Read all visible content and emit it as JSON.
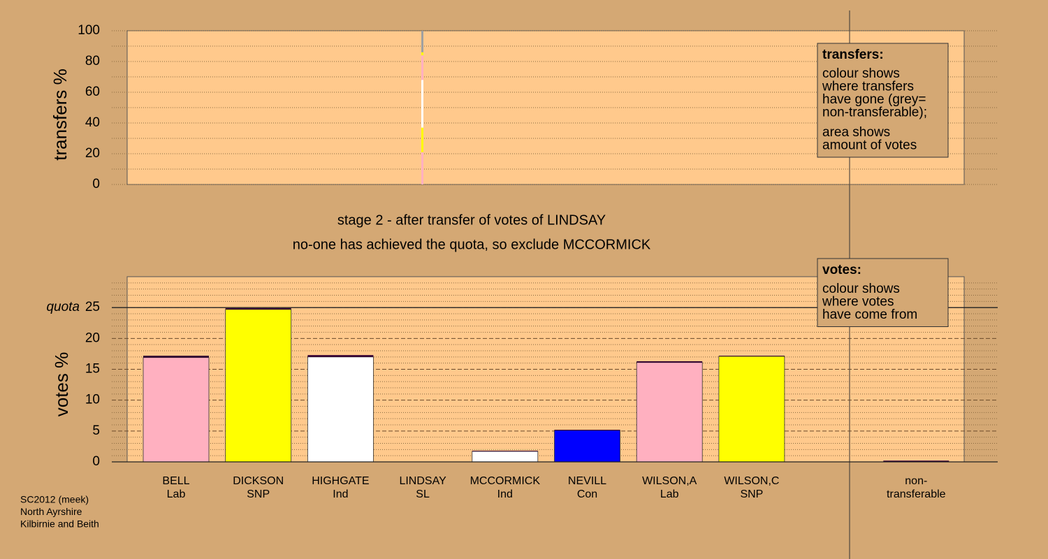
{
  "chart_data": [
    {
      "type": "transfer_strip",
      "ylabel": "transfers %",
      "ylim": [
        0,
        100
      ],
      "yticks": [
        0,
        20,
        40,
        60,
        80,
        100
      ],
      "minor_yticks": [
        10,
        30,
        50,
        70,
        90
      ],
      "segments": [
        {
          "color": "#ffb0c0",
          "value": 21
        },
        {
          "color": "#ffff00",
          "value": 16
        },
        {
          "color": "#ffffff",
          "value": 31
        },
        {
          "color": "#ffb0c0",
          "value": 16
        },
        {
          "color": "#ffff00",
          "value": 2
        },
        {
          "color": "#a0a0a0",
          "value": 14
        }
      ],
      "legend": {
        "title": "transfers:",
        "lines": [
          "colour shows",
          "where transfers",
          "have gone (grey=",
          "non-transferable);",
          "area shows",
          "amount of votes"
        ]
      }
    },
    {
      "type": "stacked_bar",
      "title": "stage 2 - after transfer of votes of LINDSAY",
      "subtitle": "no-one has achieved the quota, so exclude MCCORMICK",
      "ylabel": "votes %",
      "ylim": [
        0,
        30
      ],
      "yticks": [
        0,
        5,
        10,
        15,
        20,
        25
      ],
      "minor_yticks": [
        1,
        2,
        3,
        4,
        6,
        7,
        8,
        9,
        11,
        12,
        13,
        14,
        16,
        17,
        18,
        19,
        21,
        22,
        23,
        24,
        26,
        27,
        28,
        29
      ],
      "quota": {
        "label": "quota",
        "value": 25
      },
      "categories": [
        [
          "BELL",
          "Lab"
        ],
        [
          "DICKSON",
          "SNP"
        ],
        [
          "HIGHGATE",
          "Ind"
        ],
        [
          "LINDSAY",
          "SL"
        ],
        [
          "MCCORMICK",
          "Ind"
        ],
        [
          "NEVILL",
          "Con"
        ],
        [
          "WILSON,A",
          "Lab"
        ],
        [
          "WILSON,C",
          "SNP"
        ],
        [
          "non-",
          "transferable"
        ]
      ],
      "colors": [
        "#ffb0c0",
        "#ffff00",
        "#ffffff",
        "#330033",
        "#ffffff",
        "#0000ff",
        "#ffb0c0",
        "#ffff00",
        "#330033"
      ],
      "values": [
        16.9,
        24.7,
        17.0,
        0,
        1.7,
        5.1,
        16.1,
        17.1,
        0
      ],
      "transfer_color": "#330033",
      "transfers": [
        0.3,
        0.2,
        0.3,
        0,
        0.1,
        0.1,
        0.2,
        0.1,
        0.2
      ],
      "legend": {
        "title": "votes:",
        "lines": [
          "colour shows",
          "where votes",
          "have come from"
        ]
      }
    }
  ],
  "footnote": [
    "SC2012 (meek)",
    "North Ayrshire",
    "Kilbirnie and Beith"
  ]
}
